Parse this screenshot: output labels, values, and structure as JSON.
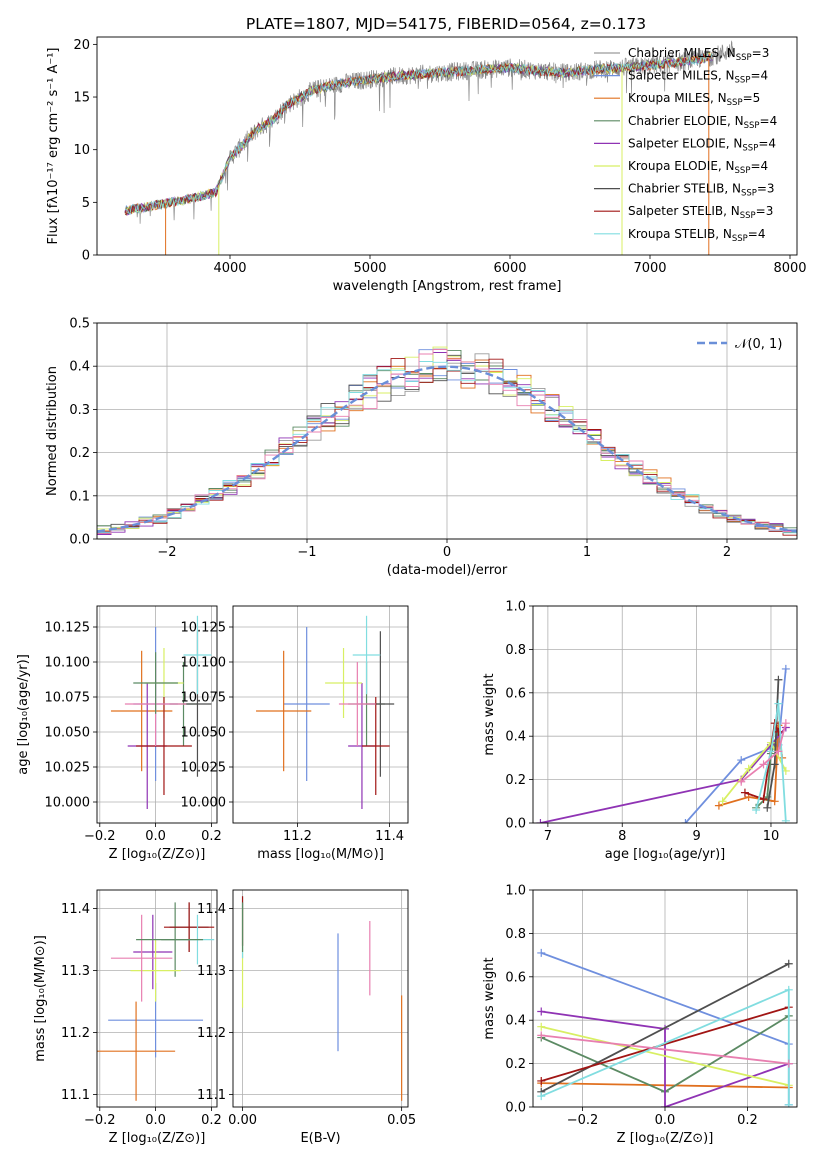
{
  "colors": {
    "palette": [
      "#9a9a9a",
      "#6f8fde",
      "#e0701f",
      "#5b8a63",
      "#8f33b4",
      "#d8ef63",
      "#4f4f4f",
      "#a11514",
      "#81dde0",
      "#e87fb0"
    ],
    "normal_line": "#6a8fd8",
    "grid": "#b0b0b0"
  },
  "chart_data": [
    {
      "id": "spectrum",
      "type": "line",
      "title": "PLATE=1807, MJD=54175, FIBERID=0564, z=0.173",
      "xlabel": "wavelength [Angstrom, rest frame]",
      "ylabel": "Flux [fλ10⁻¹⁷ erg cm⁻² s⁻¹ A⁻¹]",
      "xlim": [
        3050,
        8050
      ],
      "ylim": [
        0,
        20.7
      ],
      "xticks": [
        4000,
        5000,
        6000,
        7000,
        8000
      ],
      "yticks": [
        0,
        5,
        10,
        15,
        20
      ],
      "grid": false,
      "legend_position": "upper right",
      "legend": [
        {
          "name": "Chabrier MILES, N_SSP=3",
          "base": "Chabrier MILES, N",
          "sub": "SSP",
          "tail": "=3",
          "color": "#9a9a9a"
        },
        {
          "name": "Salpeter MILES, N_SSP=4",
          "base": "Salpeter MILES, N",
          "sub": "SSP",
          "tail": "=4",
          "color": "#6f8fde"
        },
        {
          "name": "Kroupa MILES, N_SSP=5",
          "base": "Kroupa MILES, N",
          "sub": "SSP",
          "tail": "=5",
          "color": "#e0701f"
        },
        {
          "name": "Chabrier ELODIE, N_SSP=4",
          "base": "Chabrier ELODIE, N",
          "sub": "SSP",
          "tail": "=4",
          "color": "#5b8a63"
        },
        {
          "name": "Salpeter ELODIE, N_SSP=4",
          "base": "Salpeter ELODIE, N",
          "sub": "SSP",
          "tail": "=4",
          "color": "#8f33b4"
        },
        {
          "name": "Kroupa ELODIE, N_SSP=4",
          "base": "Kroupa ELODIE, N",
          "sub": "SSP",
          "tail": "=4",
          "color": "#d8ef63"
        },
        {
          "name": "Chabrier STELIB, N_SSP=3",
          "base": "Chabrier STELIB, N",
          "sub": "SSP",
          "tail": "=3",
          "color": "#4f4f4f"
        },
        {
          "name": "Salpeter STELIB, N_SSP=3",
          "base": "Salpeter STELIB, N",
          "sub": "SSP",
          "tail": "=3",
          "color": "#a11514"
        },
        {
          "name": "Kroupa STELIB, N_SSP=4",
          "base": "Kroupa STELIB, N",
          "sub": "SSP",
          "tail": "=4",
          "color": "#81dde0"
        }
      ],
      "continuum": {
        "x": [
          3250,
          3500,
          3700,
          3800,
          3900,
          4000,
          4100,
          4200,
          4300,
          4400,
          4600,
          4800,
          5000,
          5200,
          5400,
          5600,
          5800,
          6000,
          6200,
          6400,
          6600,
          6800,
          7000,
          7200,
          7400,
          7600
        ],
        "y": [
          4.2,
          4.8,
          5.3,
          5.6,
          6.0,
          9.2,
          10.6,
          12.0,
          12.7,
          14.2,
          15.7,
          16.3,
          16.7,
          17.0,
          17.2,
          17.4,
          17.6,
          17.8,
          17.5,
          17.3,
          17.6,
          17.8,
          18.0,
          18.3,
          18.7,
          19.5
        ]
      },
      "model_range": [
        3250,
        7450
      ]
    },
    {
      "id": "residuals",
      "type": "histogram",
      "title": "",
      "xlabel": "(data-model)/error",
      "ylabel": "Normed distribution",
      "xlim": [
        -2.5,
        2.5
      ],
      "ylim": [
        0,
        0.5
      ],
      "xticks": [
        -2,
        -1,
        0,
        1,
        2
      ],
      "yticks": [
        0.0,
        0.1,
        0.2,
        0.3,
        0.4,
        0.5
      ],
      "grid": true,
      "legend_position": "upper right",
      "legend_label": "𝒩(0, 1)",
      "bin_edges": {
        "start": -2.5,
        "width": 0.1,
        "count": 50
      },
      "curve": {
        "type": "normal pdf",
        "mean": 0,
        "sigma": 1
      }
    },
    {
      "id": "age-vs-Z",
      "type": "errorbar",
      "xlabel": "Z [log₁₀(Z/Z⊙)]",
      "ylabel": "age  [log₁₀(age/yr)]",
      "xlim": [
        -0.21,
        0.22
      ],
      "ylim": [
        9.985,
        10.14
      ],
      "xticks": [
        -0.2,
        0.0,
        0.2
      ],
      "yticks": [
        10.0,
        10.025,
        10.05,
        10.075,
        10.1,
        10.125
      ],
      "grid": true,
      "points": [
        {
          "x": 0.0,
          "y": 10.07,
          "xerr": 0.08,
          "yerr": 0.055,
          "color": "#6f8fde"
        },
        {
          "x": -0.05,
          "y": 10.065,
          "xerr": 0.11,
          "yerr": 0.043,
          "color": "#e0701f"
        },
        {
          "x": 0.1,
          "y": 10.07,
          "xerr": 0.05,
          "yerr": 0.03,
          "color": "#5b8a63"
        },
        {
          "x": -0.03,
          "y": 10.04,
          "xerr": 0.07,
          "yerr": 0.045,
          "color": "#8f33b4"
        },
        {
          "x": 0.03,
          "y": 10.085,
          "xerr": 0.07,
          "yerr": 0.025,
          "color": "#d8ef63"
        },
        {
          "x": 0.15,
          "y": 10.07,
          "xerr": 0.05,
          "yerr": 0.052,
          "color": "#4f4f4f"
        },
        {
          "x": 0.03,
          "y": 10.04,
          "xerr": 0.1,
          "yerr": 0.035,
          "color": "#a11514"
        },
        {
          "x": 0.15,
          "y": 10.105,
          "xerr": 0.05,
          "yerr": 0.028,
          "color": "#81dde0"
        },
        {
          "x": 0.0,
          "y": 10.07,
          "xerr": 0.11,
          "yerr": 0.03,
          "color": "#e87fb0"
        },
        {
          "x": 0.0,
          "y": 10.085,
          "xerr": 0.08,
          "yerr": 0.022,
          "color": "#5b8a63"
        }
      ]
    },
    {
      "id": "age-vs-mass",
      "type": "errorbar",
      "xlabel": "mass [log₁₀(M/M⊙)]",
      "ylabel": "",
      "xlim": [
        11.06,
        11.44
      ],
      "ylim": [
        9.985,
        10.14
      ],
      "xticks": [
        11.2,
        11.4
      ],
      "yticks": [
        10.0,
        10.025,
        10.05,
        10.075,
        10.1,
        10.125
      ],
      "grid": true,
      "points": [
        {
          "x": 11.22,
          "y": 10.07,
          "xerr": 0.05,
          "yerr": 0.055,
          "color": "#6f8fde"
        },
        {
          "x": 11.17,
          "y": 10.065,
          "xerr": 0.06,
          "yerr": 0.043,
          "color": "#e0701f"
        },
        {
          "x": 11.35,
          "y": 10.07,
          "xerr": 0.04,
          "yerr": 0.03,
          "color": "#5b8a63"
        },
        {
          "x": 11.34,
          "y": 10.04,
          "xerr": 0.03,
          "yerr": 0.045,
          "color": "#8f33b4"
        },
        {
          "x": 11.3,
          "y": 10.085,
          "xerr": 0.04,
          "yerr": 0.025,
          "color": "#d8ef63"
        },
        {
          "x": 11.38,
          "y": 10.07,
          "xerr": 0.03,
          "yerr": 0.052,
          "color": "#4f4f4f"
        },
        {
          "x": 11.37,
          "y": 10.04,
          "xerr": 0.03,
          "yerr": 0.035,
          "color": "#a11514"
        },
        {
          "x": 11.35,
          "y": 10.105,
          "xerr": 0.03,
          "yerr": 0.028,
          "color": "#81dde0"
        },
        {
          "x": 11.33,
          "y": 10.07,
          "xerr": 0.04,
          "yerr": 0.03,
          "color": "#e87fb0"
        }
      ]
    },
    {
      "id": "weight-vs-age",
      "type": "line",
      "xlabel": "age  [log₁₀(age/yr)]",
      "ylabel": "mass weight",
      "xlim": [
        6.8,
        10.35
      ],
      "ylim": [
        0,
        1.0
      ],
      "xticks": [
        7,
        8,
        9,
        10
      ],
      "yticks": [
        0.0,
        0.2,
        0.4,
        0.6,
        0.8,
        1.0
      ],
      "grid": true,
      "series": [
        {
          "x": [
            8.85,
            9.6,
            10.1,
            10.2
          ],
          "y": [
            0.0,
            0.29,
            0.36,
            0.71
          ],
          "color": "#6f8fde"
        },
        {
          "x": [
            9.3,
            9.7,
            10.05,
            10.1,
            10.15
          ],
          "y": [
            0.08,
            0.12,
            0.1,
            0.45,
            0.3
          ],
          "color": "#e0701f"
        },
        {
          "x": [
            9.8,
            9.95,
            10.0,
            10.1
          ],
          "y": [
            0.07,
            0.12,
            0.32,
            0.42
          ],
          "color": "#5b8a63"
        },
        {
          "x": [
            6.9,
            9.6,
            10.0,
            10.2
          ],
          "y": [
            0.0,
            0.2,
            0.36,
            0.44
          ],
          "color": "#8f33b4"
        },
        {
          "x": [
            9.35,
            9.7,
            10.0,
            10.2
          ],
          "y": [
            0.1,
            0.25,
            0.37,
            0.24
          ],
          "color": "#d8ef63"
        },
        {
          "x": [
            9.95,
            10.05,
            10.1
          ],
          "y": [
            0.07,
            0.27,
            0.66
          ],
          "color": "#4f4f4f"
        },
        {
          "x": [
            9.65,
            9.9,
            10.05,
            10.1
          ],
          "y": [
            0.14,
            0.11,
            0.46,
            0.42
          ],
          "color": "#a11514"
        },
        {
          "x": [
            9.8,
            10.0,
            10.1,
            10.2
          ],
          "y": [
            0.06,
            0.33,
            0.55,
            0.01
          ],
          "color": "#81dde0"
        },
        {
          "x": [
            9.6,
            9.9,
            10.1,
            10.2
          ],
          "y": [
            0.19,
            0.27,
            0.33,
            0.46
          ],
          "color": "#e87fb0"
        }
      ]
    },
    {
      "id": "mass-vs-Z",
      "type": "errorbar",
      "xlabel": "Z [log₁₀(Z/Z⊙)]",
      "ylabel": "mass [log₁₀(M/M⊙)]",
      "xlim": [
        -0.21,
        0.22
      ],
      "ylim": [
        11.08,
        11.43
      ],
      "xticks": [
        -0.2,
        0.0,
        0.2
      ],
      "yticks": [
        11.1,
        11.2,
        11.3,
        11.4
      ],
      "grid": true,
      "points": [
        {
          "x": 0.0,
          "y": 11.22,
          "xerr": 0.17,
          "yerr": 0.06,
          "color": "#6f8fde"
        },
        {
          "x": -0.07,
          "y": 11.17,
          "xerr": 0.14,
          "yerr": 0.08,
          "color": "#e0701f"
        },
        {
          "x": 0.07,
          "y": 11.35,
          "xerr": 0.05,
          "yerr": 0.06,
          "color": "#5b8a63"
        },
        {
          "x": -0.01,
          "y": 11.33,
          "xerr": 0.07,
          "yerr": 0.06,
          "color": "#8f33b4"
        },
        {
          "x": 0.0,
          "y": 11.3,
          "xerr": 0.09,
          "yerr": 0.05,
          "color": "#d8ef63"
        },
        {
          "x": 0.12,
          "y": 11.37,
          "xerr": 0.07,
          "yerr": 0.04,
          "color": "#4f4f4f"
        },
        {
          "x": 0.12,
          "y": 11.37,
          "xerr": 0.09,
          "yerr": 0.04,
          "color": "#a11514"
        },
        {
          "x": 0.15,
          "y": 11.35,
          "xerr": 0.06,
          "yerr": 0.04,
          "color": "#81dde0"
        },
        {
          "x": -0.05,
          "y": 11.32,
          "xerr": 0.11,
          "yerr": 0.07,
          "color": "#e87fb0"
        },
        {
          "x": 0.05,
          "y": 11.35,
          "xerr": 0.12,
          "yerr": 0.0,
          "color": "#5b8a63"
        }
      ]
    },
    {
      "id": "mass-vs-EBV",
      "type": "errorbar",
      "xlabel": "E(B-V)",
      "ylabel": "",
      "xlim": [
        -0.003,
        0.052
      ],
      "ylim": [
        11.08,
        11.43
      ],
      "xticks": [
        0.0,
        0.05
      ],
      "yticks": [
        11.1,
        11.2,
        11.3,
        11.4
      ],
      "grid": true,
      "points": [
        {
          "x": 0.03,
          "y": 11.265,
          "xerr": 0.0,
          "yerr": 0.095,
          "color": "#6f8fde"
        },
        {
          "x": 0.05,
          "y": 11.175,
          "xerr": 0.0,
          "yerr": 0.085,
          "color": "#e0701f"
        },
        {
          "x": 0.04,
          "y": 11.32,
          "xerr": 0.0,
          "yerr": 0.06,
          "color": "#e87fb0"
        },
        {
          "x": 0.0,
          "y": 11.32,
          "xerr": 0.0,
          "yerr": 0.08,
          "color": "#d8ef63"
        },
        {
          "x": 0.0,
          "y": 11.37,
          "xerr": 0.0,
          "yerr": 0.05,
          "color": "#81dde0"
        },
        {
          "x": 0.0,
          "y": 11.38,
          "xerr": 0.0,
          "yerr": 0.04,
          "color": "#a11514"
        },
        {
          "x": 0.0,
          "y": 11.37,
          "xerr": 0.0,
          "yerr": 0.04,
          "color": "#5b8a63"
        }
      ]
    },
    {
      "id": "weight-vs-Z",
      "type": "line",
      "xlabel": "Z [log₁₀(Z/Z⊙)]",
      "ylabel": "mass weight",
      "xlim": [
        -0.32,
        0.32
      ],
      "ylim": [
        0,
        1.0
      ],
      "xticks": [
        -0.2,
        0.0,
        0.2
      ],
      "yticks": [
        0.0,
        0.2,
        0.4,
        0.6,
        0.8,
        1.0
      ],
      "grid": true,
      "series": [
        {
          "x": [
            -0.3,
            0.3,
            0.3
          ],
          "y": [
            0.71,
            0.29,
            0.01
          ],
          "color": "#6f8fde"
        },
        {
          "x": [
            -0.3,
            0.3
          ],
          "y": [
            0.11,
            0.09
          ],
          "color": "#e0701f"
        },
        {
          "x": [
            -0.3,
            0.0,
            0.3
          ],
          "y": [
            0.32,
            0.07,
            0.42
          ],
          "color": "#5b8a63"
        },
        {
          "x": [
            -0.3,
            0.0,
            0.0,
            0.3
          ],
          "y": [
            0.44,
            0.36,
            0.0,
            0.2
          ],
          "color": "#8f33b4"
        },
        {
          "x": [
            -0.3,
            0.3
          ],
          "y": [
            0.37,
            0.1
          ],
          "color": "#d8ef63"
        },
        {
          "x": [
            -0.3,
            0.3
          ],
          "y": [
            0.07,
            0.66
          ],
          "color": "#4f4f4f"
        },
        {
          "x": [
            -0.3,
            0.3
          ],
          "y": [
            0.12,
            0.46
          ],
          "color": "#a11514"
        },
        {
          "x": [
            -0.3,
            0.3,
            0.3
          ],
          "y": [
            0.05,
            0.54,
            0.01
          ],
          "color": "#81dde0"
        },
        {
          "x": [
            -0.3,
            0.3
          ],
          "y": [
            0.33,
            0.2
          ],
          "color": "#e87fb0"
        }
      ]
    }
  ]
}
